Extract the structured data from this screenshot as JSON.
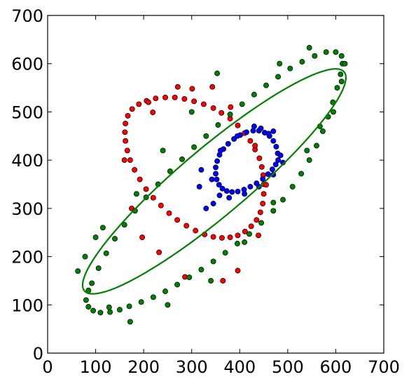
{
  "chart_data": {
    "type": "scatter",
    "title": "",
    "xlabel": "",
    "ylabel": "",
    "xlim": [
      0,
      700
    ],
    "ylim": [
      0,
      700
    ],
    "xticks": [
      "0",
      "100",
      "200",
      "300",
      "400",
      "500",
      "600",
      "700"
    ],
    "yticks": [
      "0",
      "100",
      "200",
      "300",
      "400",
      "500",
      "600",
      "700"
    ],
    "grid": false,
    "legend": "none",
    "series": [
      {
        "color": "#ff0000",
        "marker": "circle",
        "points": [
          [
            450,
            350
          ],
          [
            449,
            369
          ],
          [
            446,
            386
          ],
          [
            441,
            404
          ],
          [
            432,
            422
          ],
          [
            422,
            440
          ],
          [
            410,
            456
          ],
          [
            396,
            472
          ],
          [
            380,
            486
          ],
          [
            362,
            498
          ],
          [
            345,
            508
          ],
          [
            325,
            516
          ],
          [
            305,
            522
          ],
          [
            285,
            527
          ],
          [
            265,
            530
          ],
          [
            245,
            530
          ],
          [
            225,
            528
          ],
          [
            206,
            523
          ],
          [
            190,
            516
          ],
          [
            176,
            506
          ],
          [
            167,
            492
          ],
          [
            162,
            476
          ],
          [
            161,
            458
          ],
          [
            162,
            440
          ],
          [
            166,
            420
          ],
          [
            172,
            400
          ],
          [
            181,
            380
          ],
          [
            192,
            360
          ],
          [
            205,
            340
          ],
          [
            220,
            322
          ],
          [
            236,
            306
          ],
          [
            253,
            290
          ],
          [
            270,
            276
          ],
          [
            289,
            264
          ],
          [
            308,
            254
          ],
          [
            327,
            246
          ],
          [
            345,
            241
          ],
          [
            363,
            239
          ],
          [
            380,
            240
          ],
          [
            396,
            244
          ],
          [
            411,
            252
          ],
          [
            424,
            263
          ],
          [
            435,
            276
          ],
          [
            443,
            292
          ],
          [
            448,
            310
          ],
          [
            450,
            330
          ],
          [
            301,
            548
          ],
          [
            343,
            552
          ],
          [
            219,
            499
          ],
          [
            160,
            400
          ],
          [
            175,
            300
          ],
          [
            232,
            209
          ],
          [
            286,
            158
          ],
          [
            365,
            150
          ],
          [
            396,
            171
          ],
          [
            439,
            244
          ],
          [
            455,
            349
          ],
          [
            432,
            430
          ],
          [
            381,
            510
          ],
          [
            271,
            552
          ],
          [
            210,
            520
          ],
          [
            197,
            240
          ]
        ]
      },
      {
        "color": "#008000",
        "marker": "circle",
        "points": [
          [
            80,
            110
          ],
          [
            85,
            96
          ],
          [
            95,
            88
          ],
          [
            110,
            84
          ],
          [
            130,
            85
          ],
          [
            150,
            90
          ],
          [
            170,
            97
          ],
          [
            195,
            106
          ],
          [
            220,
            116
          ],
          [
            245,
            128
          ],
          [
            270,
            142
          ],
          [
            295,
            157
          ],
          [
            320,
            173
          ],
          [
            345,
            190
          ],
          [
            370,
            208
          ],
          [
            395,
            227
          ],
          [
            420,
            247
          ],
          [
            445,
            270
          ],
          [
            470,
            295
          ],
          [
            490,
            318
          ],
          [
            510,
            345
          ],
          [
            528,
            372
          ],
          [
            545,
            400
          ],
          [
            560,
            430
          ],
          [
            573,
            460
          ],
          [
            584,
            490
          ],
          [
            594,
            520
          ],
          [
            603,
            550
          ],
          [
            610,
            578
          ],
          [
            614,
            600
          ],
          [
            612,
            616
          ],
          [
            600,
            624
          ],
          [
            580,
            624
          ],
          [
            556,
            616
          ],
          [
            530,
            604
          ],
          [
            505,
            590
          ],
          [
            480,
            573
          ],
          [
            455,
            555
          ],
          [
            430,
            536
          ],
          [
            405,
            516
          ],
          [
            380,
            495
          ],
          [
            355,
            473
          ],
          [
            330,
            450
          ],
          [
            305,
            427
          ],
          [
            280,
            402
          ],
          [
            255,
            377
          ],
          [
            230,
            350
          ],
          [
            205,
            323
          ],
          [
            182,
            295
          ],
          [
            160,
            266
          ],
          [
            140,
            237
          ],
          [
            122,
            207
          ],
          [
            106,
            176
          ],
          [
            92,
            145
          ],
          [
            63,
            170
          ],
          [
            78,
            200
          ],
          [
            85,
            130
          ],
          [
            100,
            240
          ],
          [
            115,
            260
          ],
          [
            128,
            95
          ],
          [
            172,
            65
          ],
          [
            250,
            100
          ],
          [
            340,
            150
          ],
          [
            410,
            230
          ],
          [
            470,
            312
          ],
          [
            540,
            420
          ],
          [
            567,
            470
          ],
          [
            595,
            500
          ],
          [
            612,
            563
          ],
          [
            619,
            600
          ],
          [
            545,
            633
          ],
          [
            483,
            600
          ],
          [
            353,
            580
          ],
          [
            300,
            500
          ],
          [
            240,
            420
          ],
          [
            185,
            330
          ]
        ]
      },
      {
        "color": "#0000ff",
        "marker": "circle",
        "points": [
          [
            480,
            400
          ],
          [
            479,
            414
          ],
          [
            476,
            428
          ],
          [
            470,
            440
          ],
          [
            462,
            450
          ],
          [
            452,
            457
          ],
          [
            440,
            461
          ],
          [
            428,
            461
          ],
          [
            414,
            458
          ],
          [
            401,
            452
          ],
          [
            388,
            444
          ],
          [
            376,
            434
          ],
          [
            366,
            423
          ],
          [
            358,
            411
          ],
          [
            353,
            398
          ],
          [
            350,
            385
          ],
          [
            350,
            372
          ],
          [
            352,
            360
          ],
          [
            357,
            349
          ],
          [
            364,
            341
          ],
          [
            373,
            336
          ],
          [
            384,
            334
          ],
          [
            396,
            335
          ],
          [
            409,
            339
          ],
          [
            422,
            345
          ],
          [
            435,
            352
          ],
          [
            448,
            361
          ],
          [
            459,
            371
          ],
          [
            468,
            381
          ],
          [
            475,
            391
          ],
          [
            485,
            410
          ],
          [
            470,
            460
          ],
          [
            444,
            466
          ],
          [
            395,
            450
          ],
          [
            360,
            420
          ],
          [
            342,
            360
          ],
          [
            358,
            327
          ],
          [
            378,
            322
          ],
          [
            410,
            330
          ],
          [
            440,
            345
          ],
          [
            470,
            370
          ],
          [
            490,
            395
          ],
          [
            320,
            380
          ],
          [
            316,
            345
          ],
          [
            330,
            300
          ],
          [
            345,
            310
          ],
          [
            430,
            470
          ],
          [
            460,
            455
          ]
        ]
      }
    ],
    "fit_curves": [
      {
        "color": "#008000",
        "shape": "ellipse",
        "center": [
          347,
          356
        ],
        "semi_axes": [
          353,
          70
        ],
        "rotation_deg": 40
      }
    ]
  }
}
